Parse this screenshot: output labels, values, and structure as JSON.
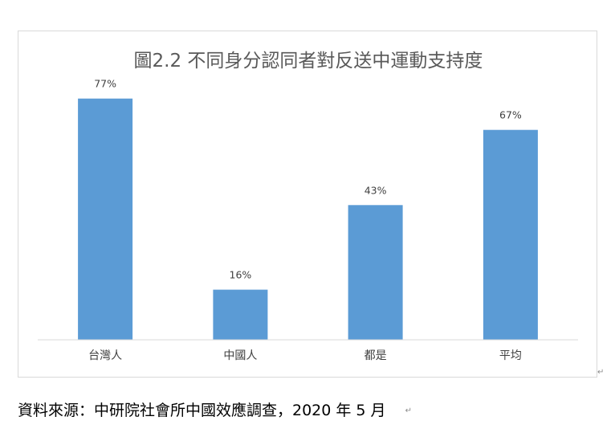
{
  "chart_data": {
    "type": "bar",
    "title": "圖2.2 不同身分認同者對反送中運動支持度",
    "categories": [
      "台灣人",
      "中國人",
      "都是",
      "平均"
    ],
    "values": [
      77,
      16,
      43,
      67
    ],
    "value_labels": [
      "77%",
      "16%",
      "43%",
      "67%"
    ],
    "ylim": [
      0,
      80
    ],
    "grid": false,
    "legend": "none",
    "bar_color": "#5b9bd5",
    "axis_color": "#d9d9d9"
  },
  "source": {
    "text": "資料來源：中研院社會所中國效應調查，2020 年 5 月",
    "para_mark": "↵"
  },
  "frame_mark": "↵"
}
